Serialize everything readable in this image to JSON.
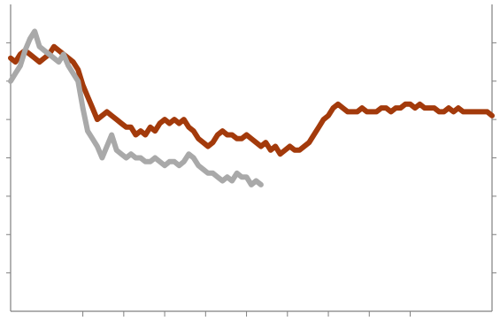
{
  "chart_data": {
    "type": "line",
    "title": "",
    "xlabel": "",
    "ylabel": "",
    "grid": false,
    "legend": "none",
    "xlim": [
      0,
      100
    ],
    "ylim": [
      0,
      8
    ],
    "y_ticks": [
      1,
      2,
      3,
      4,
      5,
      6,
      7
    ],
    "x_ticks": [
      15,
      23.5,
      32,
      40.5,
      49,
      57.5,
      66,
      74.5,
      83
    ],
    "colors": {
      "orange": "#a33a0b",
      "gray": "#a9a9a9",
      "axis": "#808080",
      "background": "#ffffff"
    },
    "series": [
      {
        "color": "#a33a0b",
        "x": [
          0,
          1,
          2,
          3,
          4,
          5,
          6,
          7,
          8,
          9,
          10,
          11,
          12,
          13,
          14,
          15,
          16,
          17,
          18,
          19,
          20,
          21,
          22,
          23,
          24,
          25,
          26,
          27,
          28,
          29,
          30,
          31,
          32,
          33,
          34,
          35,
          36,
          37,
          38,
          39,
          40,
          41,
          42,
          43,
          44,
          45,
          46,
          47,
          48,
          49,
          50,
          51,
          52,
          53,
          54,
          55,
          56,
          57,
          58,
          59,
          60,
          61,
          62,
          63,
          64,
          65,
          66,
          67,
          68,
          69,
          70,
          71,
          72,
          73,
          74,
          75,
          76,
          77,
          78,
          79,
          80,
          81,
          82,
          83,
          84,
          85,
          86,
          87,
          88,
          89,
          90,
          91,
          92,
          93,
          94,
          95,
          96,
          97,
          98,
          99,
          100
        ],
        "values": [
          6.6,
          6.5,
          6.7,
          6.8,
          6.7,
          6.6,
          6.5,
          6.6,
          6.7,
          6.9,
          6.8,
          6.7,
          6.6,
          6.5,
          6.3,
          5.9,
          5.6,
          5.3,
          5.0,
          5.1,
          5.2,
          5.1,
          5.0,
          4.9,
          4.8,
          4.8,
          4.6,
          4.7,
          4.6,
          4.8,
          4.7,
          4.9,
          5.0,
          4.9,
          5.0,
          4.9,
          5.0,
          4.8,
          4.7,
          4.5,
          4.4,
          4.3,
          4.4,
          4.6,
          4.7,
          4.6,
          4.6,
          4.5,
          4.5,
          4.6,
          4.5,
          4.4,
          4.3,
          4.4,
          4.2,
          4.3,
          4.1,
          4.2,
          4.3,
          4.2,
          4.2,
          4.3,
          4.4,
          4.6,
          4.8,
          5.0,
          5.1,
          5.3,
          5.4,
          5.3,
          5.2,
          5.2,
          5.2,
          5.3,
          5.2,
          5.2,
          5.2,
          5.3,
          5.3,
          5.2,
          5.3,
          5.3,
          5.4,
          5.4,
          5.3,
          5.4,
          5.3,
          5.3,
          5.3,
          5.2,
          5.2,
          5.3,
          5.2,
          5.3,
          5.2,
          5.2,
          5.2,
          5.2,
          5.2,
          5.2,
          5.1
        ]
      },
      {
        "color": "#a9a9a9",
        "x": [
          0,
          1,
          2,
          3,
          4,
          5,
          6,
          7,
          8,
          9,
          10,
          11,
          12,
          13,
          14,
          15,
          16,
          17,
          18,
          19,
          20,
          21,
          22,
          23,
          24,
          25,
          26,
          27,
          28,
          29,
          30,
          31,
          32,
          33,
          34,
          35,
          36,
          37,
          38,
          39,
          40,
          41,
          42,
          43,
          44,
          45,
          46,
          47,
          48,
          49,
          50,
          51,
          52
        ],
        "values": [
          6.0,
          6.2,
          6.4,
          6.8,
          7.1,
          7.3,
          6.9,
          6.8,
          6.7,
          6.6,
          6.5,
          6.7,
          6.4,
          6.2,
          6.0,
          5.3,
          4.7,
          4.5,
          4.3,
          4.0,
          4.3,
          4.6,
          4.2,
          4.1,
          4.0,
          4.1,
          4.0,
          4.0,
          3.9,
          3.9,
          4.0,
          3.9,
          3.8,
          3.9,
          3.9,
          3.8,
          3.9,
          4.1,
          4.0,
          3.8,
          3.7,
          3.6,
          3.6,
          3.5,
          3.4,
          3.5,
          3.4,
          3.6,
          3.5,
          3.5,
          3.3,
          3.4,
          3.3
        ]
      }
    ]
  }
}
